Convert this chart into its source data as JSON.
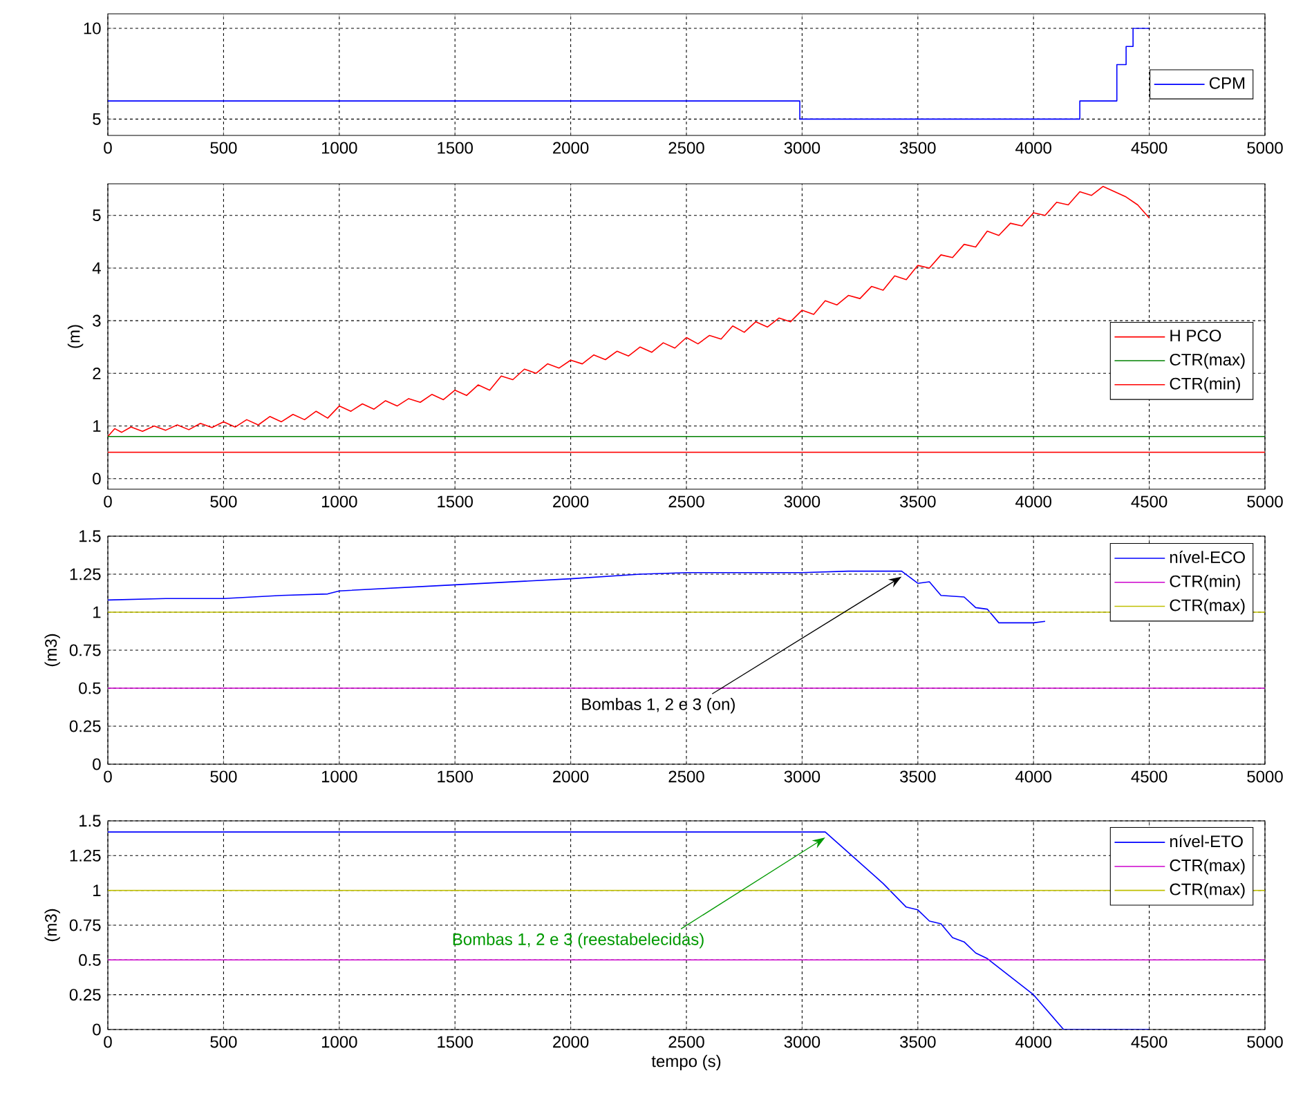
{
  "chart_data": [
    {
      "type": "step",
      "xlim": [
        0,
        5000
      ],
      "ylim": [
        4.1,
        10.8
      ],
      "xticks": [
        0,
        500,
        1000,
        1500,
        2000,
        2500,
        3000,
        3500,
        4000,
        4500,
        5000
      ],
      "yticks": [
        5,
        10
      ],
      "grid": true,
      "legend": "right",
      "series": [
        {
          "name": "CPM",
          "color": "#0000ff",
          "x": [
            0,
            2990,
            4200,
            4360,
            4400,
            4430,
            4500
          ],
          "values": [
            6,
            5,
            6,
            8,
            9,
            10,
            10
          ]
        }
      ]
    },
    {
      "type": "line",
      "xlim": [
        0,
        5000
      ],
      "ylim": [
        -0.2,
        5.6
      ],
      "xticks": [
        0,
        500,
        1000,
        1500,
        2000,
        2500,
        3000,
        3500,
        4000,
        4500,
        5000
      ],
      "yticks": [
        0,
        1,
        2,
        3,
        4,
        5
      ],
      "ylabel": "(m)",
      "grid": true,
      "legend": "right",
      "series": [
        {
          "name": "H PCO",
          "color": "#ff0000",
          "x": [
            0,
            30,
            60,
            100,
            150,
            200,
            250,
            300,
            350,
            400,
            450,
            500,
            550,
            600,
            650,
            700,
            750,
            800,
            850,
            900,
            950,
            1000,
            1050,
            1100,
            1150,
            1200,
            1250,
            1300,
            1350,
            1400,
            1450,
            1500,
            1550,
            1600,
            1650,
            1700,
            1750,
            1800,
            1850,
            1900,
            1950,
            2000,
            2050,
            2100,
            2150,
            2200,
            2250,
            2300,
            2350,
            2400,
            2450,
            2500,
            2550,
            2600,
            2650,
            2700,
            2750,
            2800,
            2850,
            2900,
            2950,
            3000,
            3050,
            3100,
            3150,
            3200,
            3250,
            3300,
            3350,
            3400,
            3450,
            3500,
            3550,
            3600,
            3650,
            3700,
            3750,
            3800,
            3850,
            3900,
            3950,
            4000,
            4050,
            4100,
            4150,
            4200,
            4250,
            4300,
            4350,
            4400,
            4450,
            4500
          ],
          "values": [
            0.8,
            0.95,
            0.88,
            0.98,
            0.9,
            1.0,
            0.92,
            1.02,
            0.93,
            1.05,
            0.97,
            1.08,
            0.98,
            1.12,
            1.02,
            1.18,
            1.08,
            1.22,
            1.12,
            1.28,
            1.15,
            1.38,
            1.28,
            1.42,
            1.32,
            1.48,
            1.38,
            1.52,
            1.45,
            1.6,
            1.5,
            1.68,
            1.58,
            1.78,
            1.68,
            1.95,
            1.88,
            2.08,
            2.0,
            2.18,
            2.1,
            2.25,
            2.18,
            2.35,
            2.26,
            2.42,
            2.33,
            2.5,
            2.4,
            2.58,
            2.48,
            2.68,
            2.56,
            2.72,
            2.65,
            2.9,
            2.78,
            2.98,
            2.88,
            3.05,
            2.98,
            3.2,
            3.12,
            3.38,
            3.3,
            3.48,
            3.42,
            3.65,
            3.58,
            3.85,
            3.78,
            4.05,
            4.0,
            4.25,
            4.2,
            4.45,
            4.4,
            4.7,
            4.62,
            4.85,
            4.8,
            5.05,
            5.0,
            5.25,
            5.2,
            5.45,
            5.38,
            5.55,
            5.45,
            5.35,
            5.2,
            4.95
          ]
        },
        {
          "name": "CTR(max)",
          "color": "#008000",
          "x": [
            0,
            5000
          ],
          "values": [
            0.8,
            0.8
          ]
        },
        {
          "name": "CTR(min)",
          "color": "#ff0000",
          "x": [
            0,
            5000
          ],
          "values": [
            0.5,
            0.5
          ]
        }
      ]
    },
    {
      "type": "line",
      "xlim": [
        0,
        5000
      ],
      "ylim": [
        0,
        1.5
      ],
      "xticks": [
        0,
        500,
        1000,
        1500,
        2000,
        2500,
        3000,
        3500,
        4000,
        4500,
        5000
      ],
      "yticks": [
        0,
        0.25,
        0.5,
        0.75,
        1,
        1.25,
        1.5
      ],
      "ylabel": "(m3)",
      "grid": true,
      "legend": "top right",
      "annotations": [
        {
          "text": "Bombas 1, 2 e 3 (on)",
          "x": 3430,
          "y": 1.27
        }
      ],
      "series": [
        {
          "name": "nível-ECO",
          "color": "#0000ff",
          "x": [
            0,
            250,
            500,
            750,
            950,
            1000,
            1500,
            2000,
            2300,
            2500,
            3000,
            3200,
            3430,
            3500,
            3550,
            3600,
            3700,
            3750,
            3800,
            3850,
            4000,
            4050
          ],
          "values": [
            1.08,
            1.09,
            1.09,
            1.11,
            1.12,
            1.14,
            1.18,
            1.22,
            1.25,
            1.26,
            1.26,
            1.27,
            1.27,
            1.19,
            1.2,
            1.11,
            1.1,
            1.03,
            1.02,
            0.93,
            0.93,
            0.94
          ]
        },
        {
          "name": "CTR(min)",
          "color": "#cc00cc",
          "x": [
            0,
            5000
          ],
          "values": [
            0.5,
            0.5
          ]
        },
        {
          "name": "CTR(max)",
          "color": "#bfbf00",
          "x": [
            0,
            5000
          ],
          "values": [
            1,
            1
          ]
        }
      ]
    },
    {
      "type": "line",
      "xlim": [
        0,
        5000
      ],
      "ylim": [
        0,
        1.5
      ],
      "xticks": [
        0,
        500,
        1000,
        1500,
        2000,
        2500,
        3000,
        3500,
        4000,
        4500,
        5000
      ],
      "yticks": [
        0,
        0.25,
        0.5,
        0.75,
        1,
        1.25,
        1.5
      ],
      "xlabel": "tempo (s)",
      "ylabel": "(m3)",
      "grid": true,
      "legend": "top right",
      "annotations": [
        {
          "text": "Bombas 1, 2 e 3 (reestabelecidas)",
          "x": 3100,
          "y": 1.42
        }
      ],
      "series": [
        {
          "name": "nível-ETO",
          "color": "#0000ff",
          "x": [
            0,
            3100,
            3350,
            3450,
            3500,
            3550,
            3600,
            3650,
            3700,
            3750,
            3800,
            4000,
            4130,
            4500
          ],
          "values": [
            1.42,
            1.42,
            1.05,
            0.88,
            0.86,
            0.78,
            0.76,
            0.66,
            0.63,
            0.55,
            0.51,
            0.25,
            0,
            0
          ]
        },
        {
          "name": "CTR(max)",
          "color": "#cc00cc",
          "x": [
            0,
            5000
          ],
          "values": [
            0.5,
            0.5
          ]
        },
        {
          "name": "CTR(max)",
          "color": "#bfbf00",
          "x": [
            0,
            5000
          ],
          "values": [
            1,
            1
          ]
        }
      ]
    }
  ]
}
